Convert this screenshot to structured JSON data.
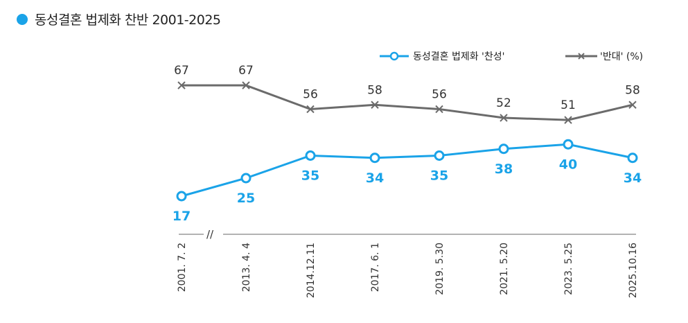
{
  "title": "동성결혼 법제화 찬반 2001-2025",
  "colors": {
    "agree": "#1aa3e8",
    "oppose": "#6b6b6b",
    "title_dot": "#1aa3e8"
  },
  "legend": {
    "agree_label": "동성결혼 법제화 '찬성'",
    "oppose_label": "'반대' (%)"
  },
  "axis_break": "//",
  "chart_data": {
    "type": "line",
    "title": "동성결혼 법제화 찬반 2001-2025",
    "categories": [
      "2001. 7. 2",
      "2013. 4. 4",
      "2014.12.11",
      "2017. 6. 1",
      "2019. 5.30",
      "2021. 5.20",
      "2023. 5.25",
      "2025.10.16"
    ],
    "series": [
      {
        "name": "동성결혼 법제화 '찬성'",
        "values": [
          17,
          25,
          35,
          34,
          35,
          38,
          40,
          34
        ]
      },
      {
        "name": "'반대'",
        "values": [
          67,
          67,
          56,
          58,
          56,
          52,
          51,
          58
        ]
      }
    ],
    "xlabel": "",
    "ylabel": "%",
    "ylim": [
      0,
      80
    ],
    "grid": false,
    "legend_position": "top-right"
  }
}
